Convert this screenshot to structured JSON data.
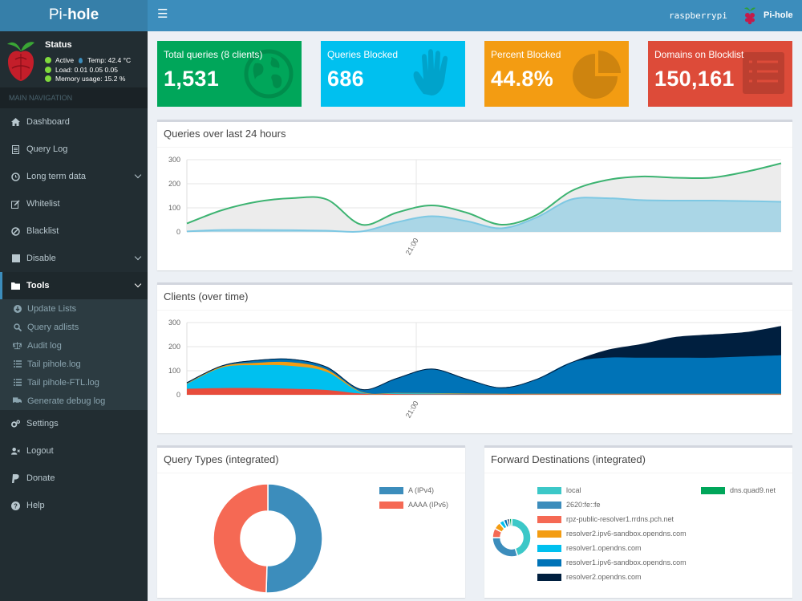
{
  "brand": {
    "light": "Pi-",
    "bold": "hole"
  },
  "navbar": {
    "hostname": "raspberrypi",
    "user_label": "Pi-hole"
  },
  "status": {
    "title": "Status",
    "active": "Active",
    "temp": "Temp: 42.4 °C",
    "load": "Load:  0.01  0.05  0.05",
    "memory": "Memory usage:  15.2 %"
  },
  "nav_header": "MAIN NAVIGATION",
  "menu": {
    "dashboard": "Dashboard",
    "query_log": "Query Log",
    "long_term": "Long term data",
    "whitelist": "Whitelist",
    "blacklist": "Blacklist",
    "disable": "Disable",
    "tools": "Tools",
    "update_lists": "Update Lists",
    "query_adlists": "Query adlists",
    "audit_log": "Audit log",
    "tail_pihole": "Tail pihole.log",
    "tail_ftl": "Tail pihole-FTL.log",
    "debug_log": "Generate debug log",
    "settings": "Settings",
    "logout": "Logout",
    "donate": "Donate",
    "help": "Help"
  },
  "stats": {
    "total_label": "Total queries (8 clients)",
    "total_value": "1,531",
    "blocked_label": "Queries Blocked",
    "blocked_value": "686",
    "percent_label": "Percent Blocked",
    "percent_value": "44.8%",
    "domains_label": "Domains on Blocklist",
    "domains_value": "150,161"
  },
  "colors": {
    "green": "#00a65a",
    "aqua": "#00c0ef",
    "yellow": "#f39c12",
    "red": "#dd4b39",
    "navbar": "#3c8dbc",
    "sidebar": "#222d32"
  },
  "panels": {
    "queries_title": "Queries over last 24 hours",
    "clients_title": "Clients (over time)",
    "types_title": "Query Types (integrated)",
    "forward_title": "Forward Destinations (integrated)"
  },
  "chart_data": [
    {
      "type": "area",
      "name": "queries-over-time",
      "x_tick_label": "21:00",
      "ylim": [
        0,
        300
      ],
      "y_ticks": [
        "0",
        "100",
        "200",
        "300"
      ],
      "series": [
        {
          "color": "#3cb371",
          "values": [
            35,
            90,
            125,
            140,
            135,
            30,
            80,
            110,
            80,
            30,
            70,
            170,
            215,
            230,
            225,
            225,
            250,
            285
          ]
        },
        {
          "color": "#7ec8e3",
          "values": [
            2,
            8,
            8,
            7,
            5,
            2,
            40,
            65,
            45,
            15,
            60,
            135,
            140,
            132,
            130,
            130,
            128,
            125
          ]
        }
      ]
    },
    {
      "type": "area",
      "name": "clients-over-time",
      "x_tick_label": "21:00",
      "ylim": [
        0,
        300
      ],
      "y_ticks": [
        "0",
        "100",
        "200",
        "300"
      ],
      "series": [
        {
          "color": "#e74c3c",
          "values": [
            25,
            28,
            28,
            25,
            20,
            5,
            3,
            2,
            2,
            2,
            2,
            2,
            2,
            2,
            2,
            2,
            2,
            2
          ]
        },
        {
          "color": "#00c0ef",
          "values": [
            20,
            85,
            95,
            95,
            75,
            5,
            5,
            5,
            3,
            2,
            2,
            2,
            2,
            2,
            2,
            2,
            2,
            2
          ]
        },
        {
          "color": "#f39c12",
          "values": [
            2,
            5,
            10,
            15,
            10,
            2,
            0,
            0,
            0,
            0,
            0,
            0,
            0,
            0,
            0,
            0,
            0,
            0
          ]
        },
        {
          "color": "#0073b7",
          "values": [
            3,
            2,
            10,
            12,
            10,
            10,
            60,
            100,
            60,
            25,
            60,
            130,
            150,
            150,
            150,
            150,
            155,
            160
          ]
        },
        {
          "color": "#001f3f",
          "values": [
            0,
            0,
            0,
            0,
            0,
            0,
            0,
            0,
            0,
            0,
            0,
            0,
            30,
            55,
            85,
            95,
            100,
            120
          ]
        }
      ]
    },
    {
      "type": "pie",
      "name": "query-types",
      "labels": [
        "A (IPv4)",
        "AAAA (IPv6)"
      ],
      "values": [
        50.5,
        49.5
      ],
      "colors": [
        "#3c8dbc",
        "#f56954"
      ]
    },
    {
      "type": "pie",
      "name": "forward-destinations",
      "labels": [
        "local",
        "2620:fe::fe",
        "rpz-public-resolver1.rrdns.pch.net",
        "resolver2.ipv6-sandbox.opendns.com",
        "resolver1.opendns.com",
        "resolver1.ipv6-sandbox.opendns.com",
        "resolver2.opendns.com",
        "dns.quad9.net"
      ],
      "values": [
        45,
        30,
        8,
        6,
        4,
        3,
        2,
        2
      ],
      "colors": [
        "#3cc8c8",
        "#3c8dbc",
        "#f56954",
        "#f39c12",
        "#00c0ef",
        "#0073b7",
        "#001f3f",
        "#00a65a"
      ]
    }
  ]
}
